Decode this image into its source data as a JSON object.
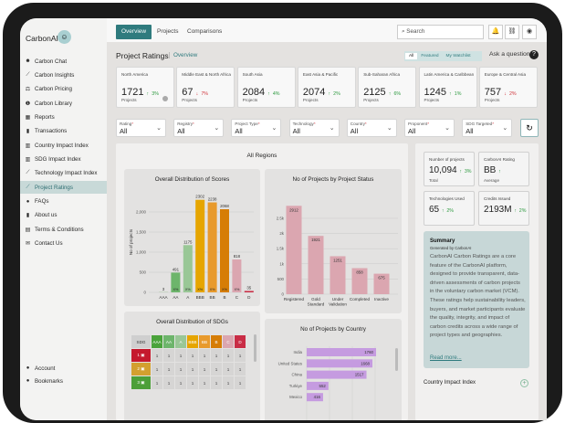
{
  "app": {
    "name": "CarbonAI"
  },
  "sidebar": {
    "items": [
      {
        "label": "Carbon Chat",
        "icon": "robot-icon"
      },
      {
        "label": "Carbon Insights",
        "icon": "chart-line-icon"
      },
      {
        "label": "Carbon Pricing",
        "icon": "scale-icon"
      },
      {
        "label": "Carbon Library",
        "icon": "info-icon"
      },
      {
        "label": "Reports",
        "icon": "reports-icon"
      },
      {
        "label": "Transactions",
        "icon": "document-icon"
      },
      {
        "label": "Country Impact Index",
        "icon": "chart-bar-icon"
      },
      {
        "label": "SDG Impact Index",
        "icon": "chart-bar-icon"
      },
      {
        "label": "Technology Impact Index",
        "icon": "chart-line-icon"
      },
      {
        "label": "Project Ratings",
        "icon": "chart-line-icon",
        "active": true
      },
      {
        "label": "FAQs",
        "icon": "help-icon"
      },
      {
        "label": "About us",
        "icon": "book-icon"
      },
      {
        "label": "Terms & Conditions",
        "icon": "terms-icon"
      },
      {
        "label": "Contact Us",
        "icon": "contact-icon"
      }
    ],
    "bottom": [
      {
        "label": "Account",
        "icon": "user-icon"
      },
      {
        "label": "Bookmarks",
        "icon": "user-icon"
      }
    ]
  },
  "topbar": {
    "tabs": [
      "Overview",
      "Projects",
      "Comparisons"
    ],
    "search_placeholder": "Search"
  },
  "page": {
    "title": "Project Ratings",
    "subtitle": "Overview",
    "toggle": [
      "All",
      "Featured",
      "My Watchlist"
    ],
    "ask": "Ask a question"
  },
  "regions": [
    {
      "name": "North America",
      "value": "1721",
      "change": "3%",
      "dir": "up",
      "sub": "Projects"
    },
    {
      "name": "Middle East & North Africa",
      "value": "67",
      "change": "7%",
      "dir": "down",
      "sub": "Projects"
    },
    {
      "name": "South Asia",
      "value": "2084",
      "change": "4%",
      "dir": "up",
      "sub": "Projects"
    },
    {
      "name": "East Asia & Pacific",
      "value": "2074",
      "change": "2%",
      "dir": "up",
      "sub": "Projects"
    },
    {
      "name": "Sub-Saharan Africa",
      "value": "2125",
      "change": "6%",
      "dir": "up",
      "sub": "Projects"
    },
    {
      "name": "Latin America & Caribbean",
      "value": "1245",
      "change": "1%",
      "dir": "up",
      "sub": "Projects"
    },
    {
      "name": "Europe & Central Asia",
      "value": "757",
      "change": "2%",
      "dir": "down",
      "sub": "Projects"
    }
  ],
  "filters": [
    {
      "label": "Rating",
      "value": "All"
    },
    {
      "label": "Registry",
      "value": "All"
    },
    {
      "label": "Project Type",
      "value": "All"
    },
    {
      "label": "Technology",
      "value": "All"
    },
    {
      "label": "Country",
      "value": "All"
    },
    {
      "label": "Proponent",
      "value": "All"
    },
    {
      "label": "SDG Targeted",
      "value": "All"
    }
  ],
  "panel": {
    "title": "All Regions"
  },
  "stats": [
    {
      "label": "Number of projects",
      "value": "10,094",
      "change": "3%",
      "sub": "Total"
    },
    {
      "label": "CarbonAI Rating",
      "value": "BB",
      "change": "",
      "sub": "Average"
    },
    {
      "label": "Technologies Used",
      "value": "65",
      "change": "2%",
      "sub": ""
    },
    {
      "label": "Credits Issued",
      "value": "2193M",
      "change": "2%",
      "sub": ""
    }
  ],
  "summary": {
    "title": "Summary",
    "generated": "Generated by CarbonAI",
    "body": "CarbonAI Carbon Ratings are a core feature of the CarbonAI platform, designed to provide transparent, data-driven assessments of carbon projects in the voluntary carbon market (VCM). These ratings help sustainability leaders, buyers, and market participants evaluate the quality, integrity, and impact of carbon credits across a wide range of project types and geographies.",
    "read_more": "Read more..."
  },
  "country_impact": {
    "title": "Country Impact Index"
  },
  "chart_data": [
    {
      "type": "bar",
      "title": "Overall Distribution of Scores",
      "ylabel": "No of projects",
      "categories": [
        "AAA",
        "AA",
        "A",
        "BBB",
        "BB",
        "B",
        "C",
        "D"
      ],
      "values": [
        3,
        491,
        1175,
        2302,
        2238,
        2068,
        818,
        35
      ],
      "inner_labels": [
        "",
        "X%",
        "X%",
        "X%",
        "X%",
        "X%",
        "X%",
        ""
      ],
      "colors": [
        "#4aa33b",
        "#6db56b",
        "#99c796",
        "#e6a500",
        "#e89a2c",
        "#d67d06",
        "#dba6b0",
        "#c92c45"
      ],
      "yticks": [
        0,
        500,
        1000,
        1500,
        2000
      ],
      "ytick_labels": [
        "0",
        "500",
        "1,000",
        "1,500",
        "2,000"
      ],
      "ylim": [
        0,
        2500
      ]
    },
    {
      "type": "bar",
      "title": "No of Projects by Project Status",
      "categories": [
        "Registered",
        "Gold Standard",
        "Under Validation",
        "Completed",
        "Inactive"
      ],
      "values": [
        2912,
        1921,
        1251,
        858,
        675
      ],
      "color": "#dba6b0",
      "yticks": [
        0,
        500,
        1000,
        1500,
        2000,
        2500
      ],
      "ytick_labels": [
        "0",
        "500",
        "1k",
        "1.5k",
        "2k",
        "2.5k"
      ],
      "ylim": [
        0,
        2800
      ]
    },
    {
      "type": "table",
      "title": "Overall Distribution of SDGs",
      "columns": [
        "SDG",
        "AAA",
        "AA",
        "A",
        "BBB",
        "BB",
        "B",
        "C",
        "D"
      ],
      "column_colors": [
        "#cfcfcf",
        "#4aa33b",
        "#6db56b",
        "#99c796",
        "#e6a500",
        "#e89a2c",
        "#d67d06",
        "#dba6b0",
        "#c92c45"
      ],
      "rows": [
        {
          "sdg": "1",
          "color": "#c5192d",
          "values": [
            "1",
            "1",
            "1",
            "1",
            "1",
            "1",
            "1",
            "1"
          ]
        },
        {
          "sdg": "2",
          "color": "#d3a02f",
          "values": [
            "1",
            "1",
            "1",
            "1",
            "1",
            "1",
            "1",
            "1"
          ]
        },
        {
          "sdg": "3",
          "color": "#4c9f38",
          "values": [
            "1",
            "1",
            "1",
            "1",
            "1",
            "1",
            "1",
            "1"
          ]
        }
      ]
    },
    {
      "type": "bar",
      "orientation": "horizontal",
      "title": "No of Projects by Country",
      "categories": [
        "India",
        "United States",
        "China",
        "Turkiye",
        "Mexico"
      ],
      "values": [
        1760,
        1668,
        1517,
        552,
        416
      ],
      "color": "#c59be0"
    }
  ]
}
